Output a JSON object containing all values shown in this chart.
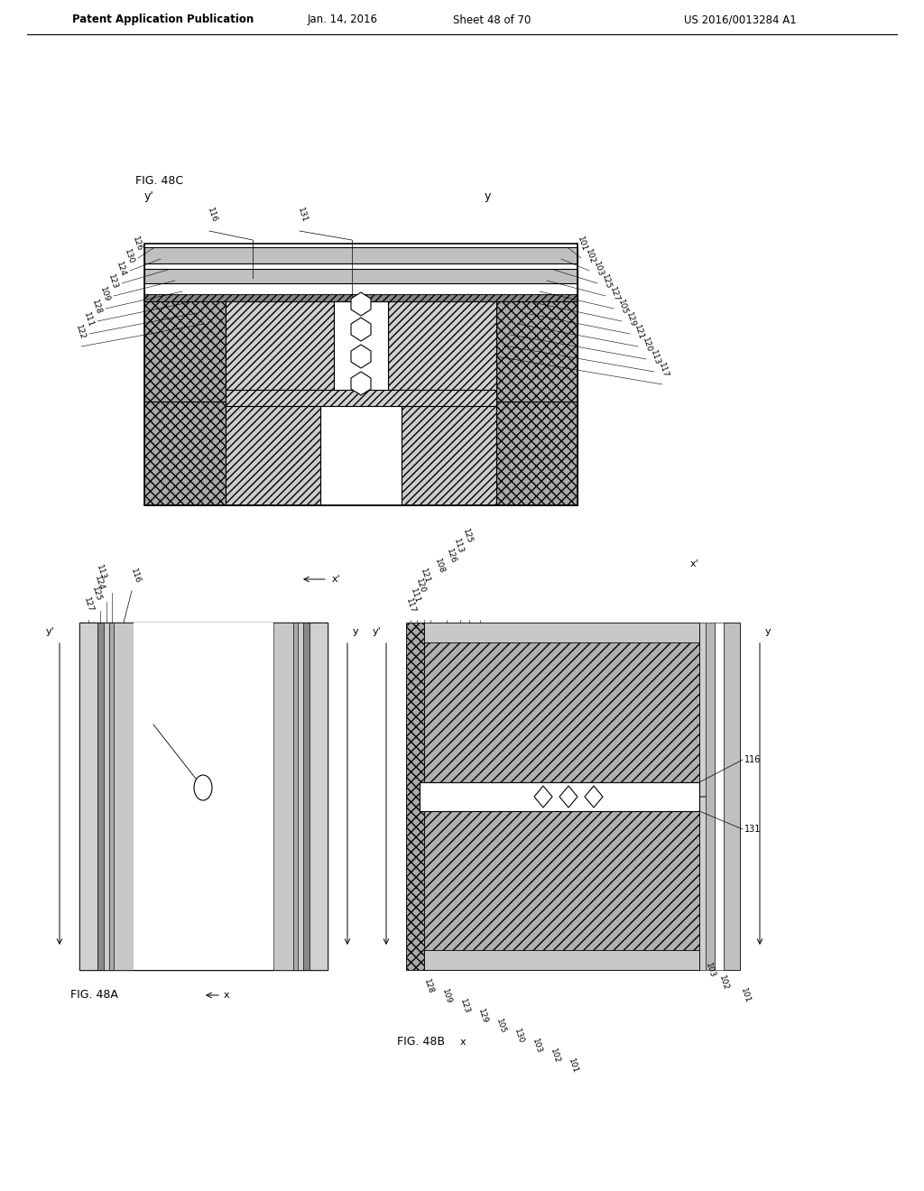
{
  "bg_color": "#ffffff",
  "header_text": "Patent Application Publication",
  "header_date": "Jan. 14, 2016",
  "header_sheet": "Sheet 48 of 70",
  "header_patent": "US 2016/0013284 A1"
}
